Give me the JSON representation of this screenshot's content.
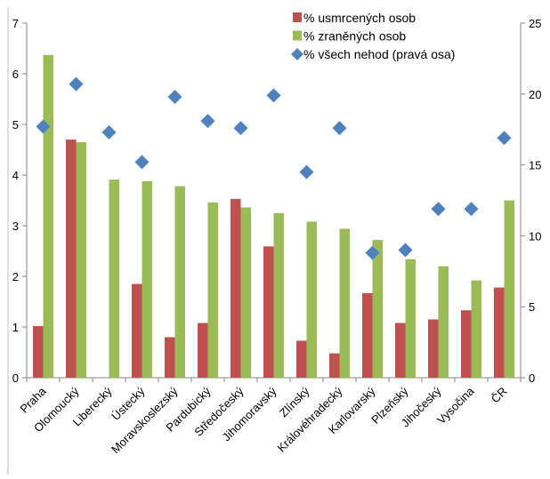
{
  "chart_data": {
    "type": "bar",
    "categories": [
      "Praha",
      "Olomoucký",
      "Liberecký",
      "Ústecký",
      "Moravskoslezský",
      "Pardubický",
      "Středočeský",
      "Jihomoravský",
      "Zlínský",
      "Královéhradecký",
      "Karlovarský",
      "Plzeňský",
      "Jihočeský",
      "Vysočina",
      "ČR"
    ],
    "series": [
      {
        "name": "% usmrcených osob",
        "kind": "bar",
        "axis": "left",
        "color": "#c0504d",
        "values": [
          1.02,
          4.7,
          0.0,
          1.85,
          0.8,
          1.08,
          3.53,
          2.59,
          0.73,
          0.48,
          1.67,
          1.08,
          1.15,
          1.33,
          1.78
        ]
      },
      {
        "name": "% zraněných osob",
        "kind": "bar",
        "axis": "left",
        "color": "#9bbb59",
        "values": [
          6.37,
          4.65,
          3.91,
          3.88,
          3.78,
          3.46,
          3.36,
          3.25,
          3.08,
          2.94,
          2.72,
          2.34,
          2.2,
          1.92,
          3.5
        ]
      },
      {
        "name": "% všech nehod (pravá osa)",
        "kind": "scatter",
        "axis": "right",
        "color": "#4f81bd",
        "values": [
          17.7,
          20.7,
          17.3,
          15.2,
          19.8,
          18.1,
          17.6,
          19.9,
          14.5,
          17.6,
          8.8,
          9.0,
          11.9,
          11.9,
          16.9
        ]
      }
    ],
    "y_left": {
      "min": 0,
      "max": 7,
      "ticks": [
        "0",
        "1",
        "2",
        "3",
        "4",
        "5",
        "6",
        "7"
      ]
    },
    "y_right": {
      "min": 0,
      "max": 25,
      "ticks": [
        "0",
        "5",
        "10",
        "15",
        "20",
        "25"
      ]
    },
    "legend_position": "top-right",
    "grid": false
  }
}
